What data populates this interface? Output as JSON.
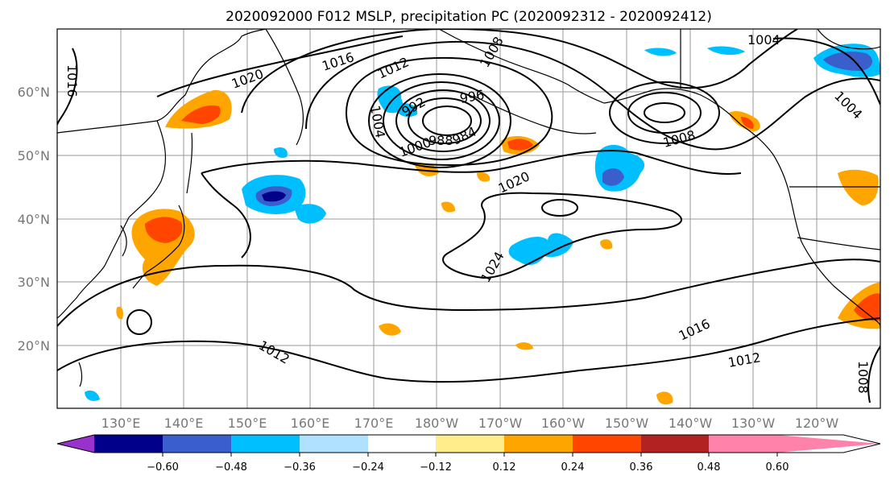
{
  "title": "2020092000 F012 MSLP, precipitation PC (2020092312 - 2020092412)",
  "map": {
    "lat_ticks": [
      "60°N",
      "50°N",
      "40°N",
      "30°N",
      "20°N"
    ],
    "lon_ticks": [
      "130°E",
      "140°E",
      "150°E",
      "160°E",
      "170°E",
      "180°W",
      "170°W",
      "160°W",
      "150°W",
      "140°W",
      "130°W",
      "120°W"
    ],
    "contour_labels": [
      "1016",
      "1016",
      "1020",
      "1012",
      "1008",
      "1004",
      "1004",
      "992",
      "996",
      "1004",
      "988",
      "984",
      "1000",
      "1008",
      "1020",
      "1024",
      "1016",
      "1012",
      "1012",
      "1008"
    ],
    "colors": {
      "land_line": "#000000",
      "grid": "#9a9a9a",
      "contour": "#000000"
    }
  },
  "colorbar": {
    "ticks": [
      "−0.60",
      "−0.48",
      "−0.36",
      "−0.24",
      "−0.12",
      "0.12",
      "0.24",
      "0.36",
      "0.48",
      "0.60"
    ],
    "colors": [
      "#9932cc",
      "#00008b",
      "#3a5fcd",
      "#00bfff",
      "#b0e2ff",
      "#ffffff",
      "#ffec8b",
      "#ffa500",
      "#ff4500",
      "#b22222",
      "#ff82ab"
    ]
  }
}
